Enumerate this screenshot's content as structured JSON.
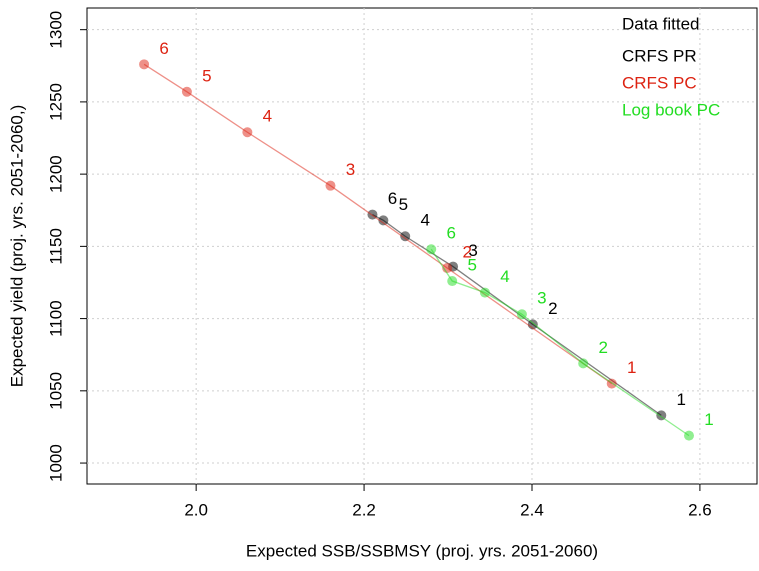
{
  "chart_data": {
    "type": "line",
    "xlabel": "Expected SSB/SSBMSY (proj. yrs. 2051-2060)",
    "ylabel": "Expected yield (proj. yrs. 2051-2060,)",
    "legend_title": "Data fitted",
    "legend": "top-right",
    "grid": true,
    "xlim": [
      1.87,
      2.668
    ],
    "ylim": [
      985.5,
      1315
    ],
    "xticks": [
      {
        "value": 2,
        "label": "2.0"
      },
      2.2,
      2.4,
      2.6
    ],
    "yticks": [
      1000,
      1050,
      1100,
      1150,
      1200,
      1250,
      1300
    ],
    "series": [
      {
        "name": "CRFS PR",
        "color": "#000000",
        "x": [
          2.554,
          2.401,
          2.306,
          2.249,
          2.223,
          2.21
        ],
        "values": [
          1033,
          1096,
          1136,
          1157,
          1168,
          1172
        ],
        "labels": [
          "1",
          "2",
          "3",
          "4",
          "5",
          "6"
        ]
      },
      {
        "name": "CRFS PC",
        "color": "#dd2211",
        "x": [
          2.495,
          2.299,
          2.16,
          2.061,
          1.989,
          1.938
        ],
        "values": [
          1055,
          1135,
          1192,
          1229,
          1257,
          1276
        ],
        "labels": [
          "1",
          "2",
          "3",
          "4",
          "5",
          "6"
        ]
      },
      {
        "name": "Log book PC",
        "color": "#22dd22",
        "x": [
          2.587,
          2.461,
          2.388,
          2.344,
          2.305,
          2.28
        ],
        "values": [
          1019,
          1069,
          1103,
          1118,
          1126,
          1148
        ],
        "labels": [
          "1",
          "2",
          "3",
          "4",
          "5",
          "6"
        ]
      }
    ]
  }
}
